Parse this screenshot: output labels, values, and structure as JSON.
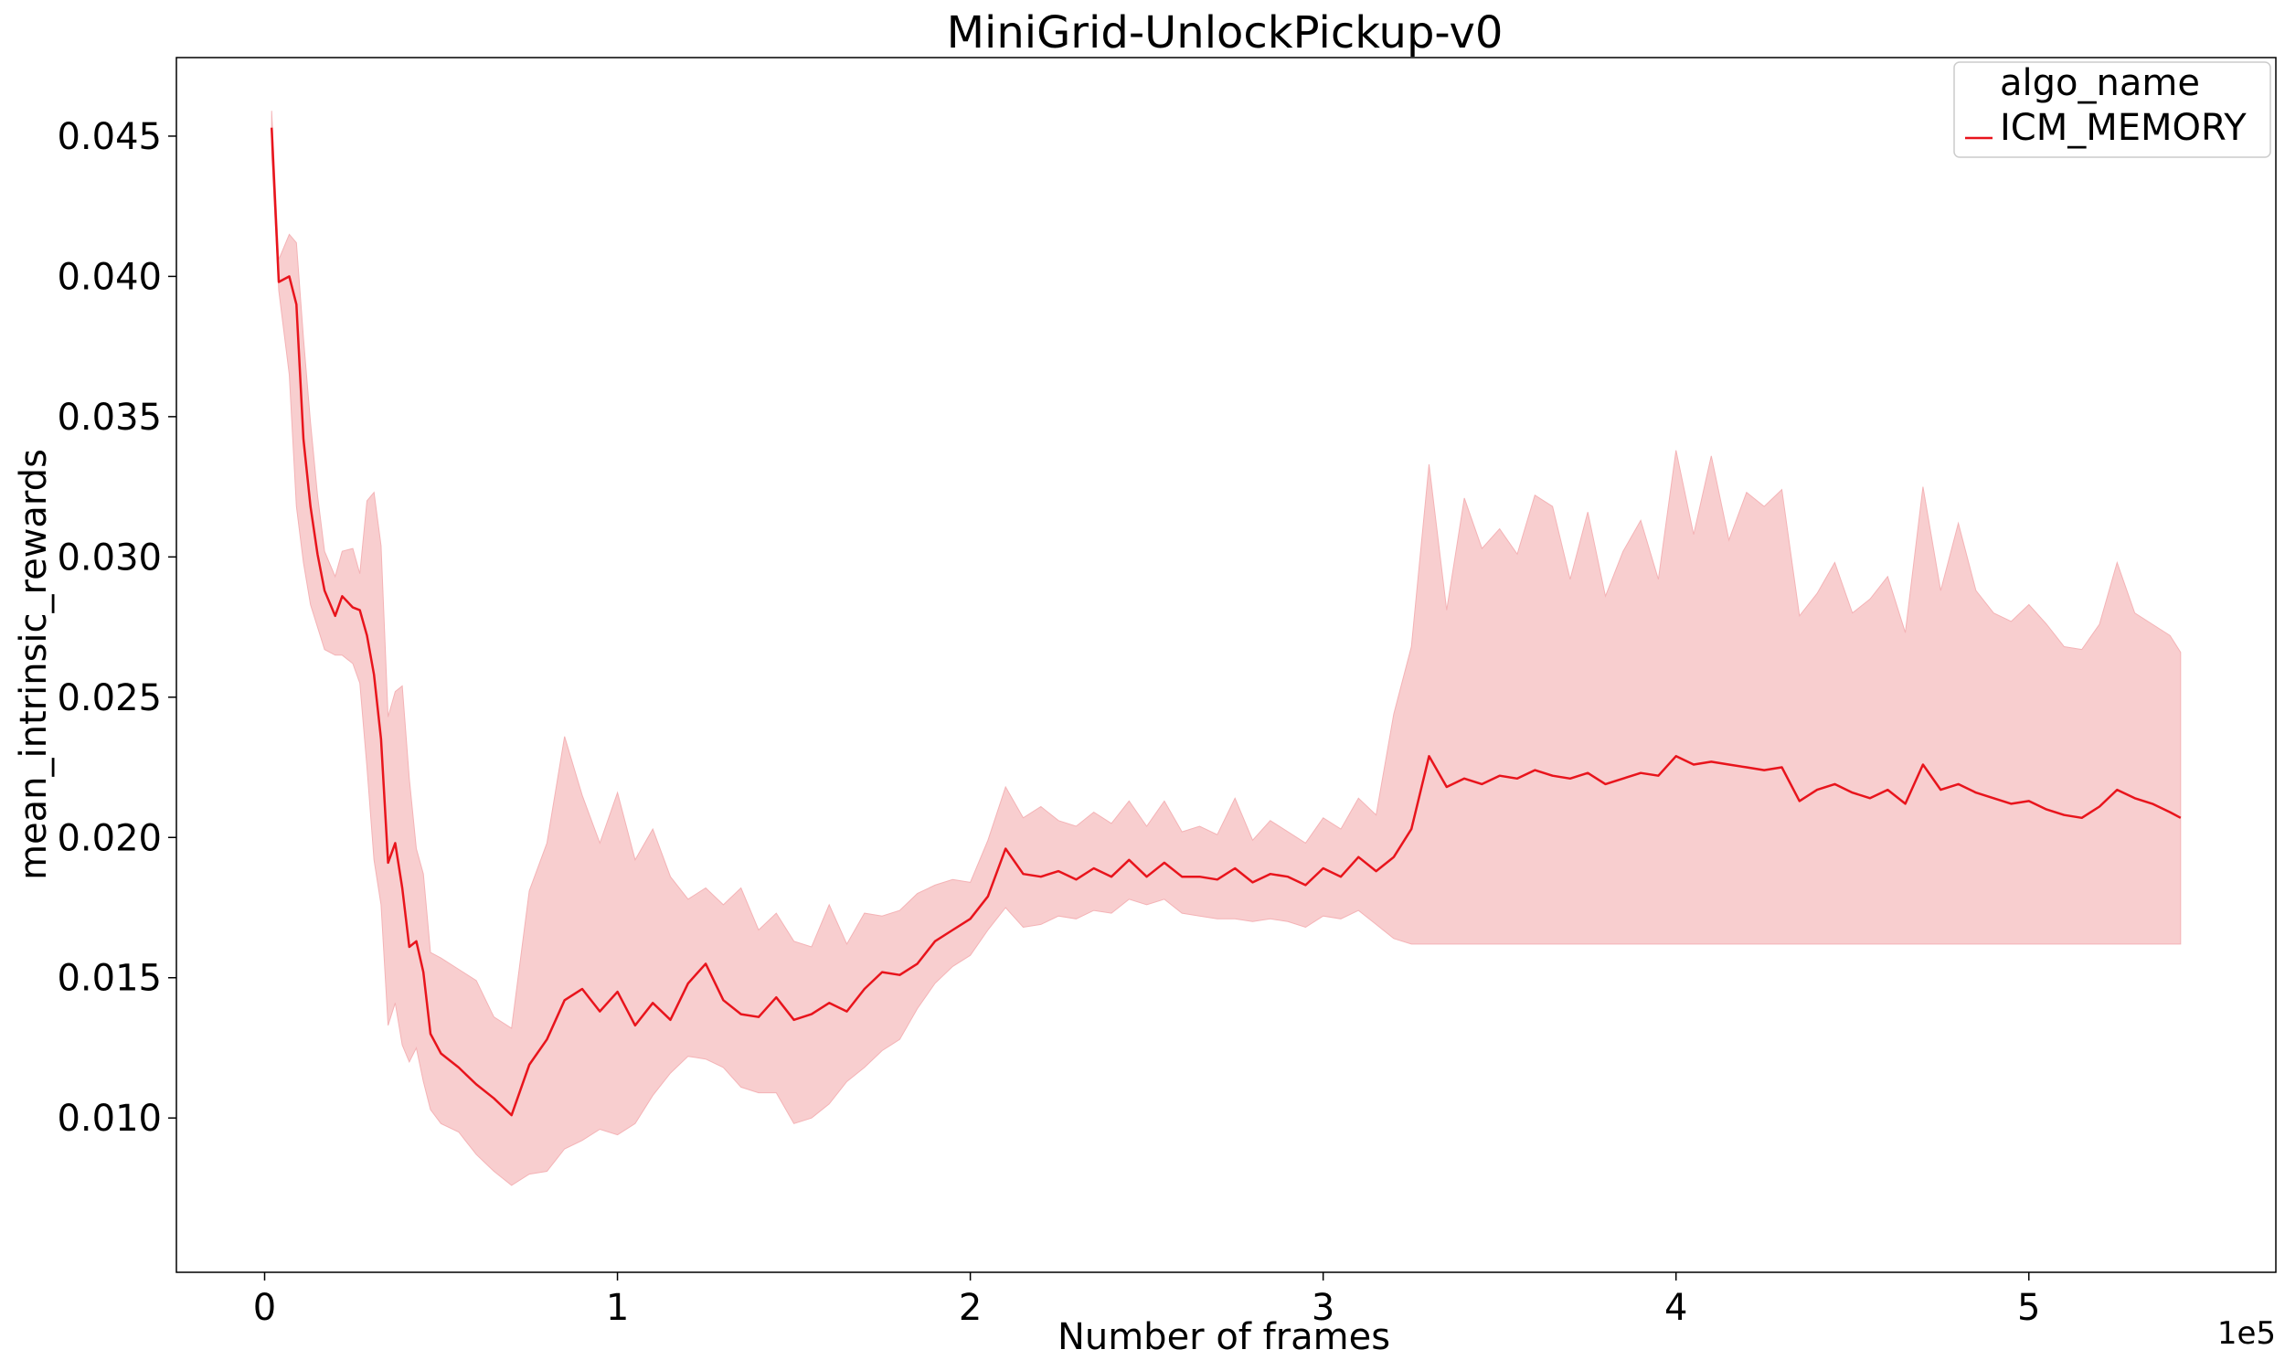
{
  "chart_data": {
    "type": "line",
    "title": "MiniGrid-UnlockPickup-v0",
    "xlabel": "Number of frames",
    "ylabel": "mean_intrinsic_rewards",
    "x_offset_label": "1e5",
    "xlim": [
      -0.25,
      5.7
    ],
    "ylim": [
      0.0045,
      0.0478
    ],
    "x_ticks": [
      0,
      1,
      2,
      3,
      4,
      5
    ],
    "x_tick_labels": [
      "0",
      "1",
      "2",
      "3",
      "4",
      "5"
    ],
    "y_ticks": [
      0.01,
      0.015,
      0.02,
      0.025,
      0.03,
      0.035,
      0.04,
      0.045
    ],
    "y_tick_labels": [
      "0.010",
      "0.015",
      "0.020",
      "0.025",
      "0.030",
      "0.035",
      "0.040",
      "0.045"
    ],
    "grid": false,
    "legend": {
      "title": "algo_name",
      "placement": "top-right"
    },
    "series": [
      {
        "name": "ICM_MEMORY",
        "color": "#e8141c",
        "band_color": "#f4b3b6",
        "x": [
          0.02,
          0.04,
          0.07,
          0.09,
          0.11,
          0.13,
          0.15,
          0.17,
          0.2,
          0.22,
          0.25,
          0.27,
          0.29,
          0.31,
          0.33,
          0.35,
          0.37,
          0.39,
          0.41,
          0.43,
          0.45,
          0.47,
          0.5,
          0.55,
          0.6,
          0.65,
          0.7,
          0.75,
          0.8,
          0.85,
          0.9,
          0.95,
          1.0,
          1.05,
          1.1,
          1.15,
          1.2,
          1.25,
          1.3,
          1.35,
          1.4,
          1.45,
          1.5,
          1.55,
          1.6,
          1.65,
          1.7,
          1.75,
          1.8,
          1.85,
          1.9,
          1.95,
          2.0,
          2.05,
          2.1,
          2.15,
          2.2,
          2.25,
          2.3,
          2.35,
          2.4,
          2.45,
          2.5,
          2.55,
          2.6,
          2.65,
          2.7,
          2.75,
          2.8,
          2.85,
          2.9,
          2.95,
          3.0,
          3.05,
          3.1,
          3.15,
          3.2,
          3.25,
          3.3,
          3.35,
          3.4,
          3.45,
          3.5,
          3.55,
          3.6,
          3.65,
          3.7,
          3.75,
          3.8,
          3.85,
          3.9,
          3.95,
          4.0,
          4.05,
          4.1,
          4.15,
          4.2,
          4.25,
          4.3,
          4.35,
          4.4,
          4.45,
          4.5,
          4.55,
          4.6,
          4.65,
          4.7,
          4.75,
          4.8,
          4.85,
          4.9,
          4.95,
          5.0,
          5.05,
          5.1,
          5.15,
          5.2,
          5.25,
          5.3,
          5.35,
          5.4,
          5.43
        ],
        "y": [
          0.0453,
          0.0398,
          0.04,
          0.039,
          0.0342,
          0.0318,
          0.0301,
          0.0288,
          0.0279,
          0.0286,
          0.0282,
          0.0281,
          0.0272,
          0.0258,
          0.0235,
          0.0191,
          0.0198,
          0.0182,
          0.0161,
          0.0163,
          0.0152,
          0.013,
          0.0123,
          0.0118,
          0.0112,
          0.0107,
          0.0101,
          0.0119,
          0.0128,
          0.0142,
          0.0146,
          0.0138,
          0.0145,
          0.0133,
          0.0141,
          0.0135,
          0.0148,
          0.0155,
          0.0142,
          0.0137,
          0.0136,
          0.0143,
          0.0135,
          0.0137,
          0.0141,
          0.0138,
          0.0146,
          0.0152,
          0.0151,
          0.0155,
          0.0163,
          0.0167,
          0.0171,
          0.0179,
          0.0196,
          0.0187,
          0.0186,
          0.0188,
          0.0185,
          0.0189,
          0.0186,
          0.0192,
          0.0186,
          0.0191,
          0.0186,
          0.0186,
          0.0185,
          0.0189,
          0.0184,
          0.0187,
          0.0186,
          0.0183,
          0.0189,
          0.0186,
          0.0193,
          0.0188,
          0.0193,
          0.0203,
          0.0229,
          0.0218,
          0.0221,
          0.0219,
          0.0222,
          0.0221,
          0.0224,
          0.0222,
          0.0221,
          0.0223,
          0.0219,
          0.0221,
          0.0223,
          0.0222,
          0.0229,
          0.0226,
          0.0227,
          0.0226,
          0.0225,
          0.0224,
          0.0225,
          0.0213,
          0.0217,
          0.0219,
          0.0216,
          0.0214,
          0.0217,
          0.0212,
          0.0226,
          0.0217,
          0.0219,
          0.0216,
          0.0214,
          0.0212,
          0.0213,
          0.021,
          0.0208,
          0.0207,
          0.0211,
          0.0217,
          0.0214,
          0.0212,
          0.0209,
          0.0207
        ],
        "lower": [
          0.0444,
          0.0395,
          0.0365,
          0.0318,
          0.0298,
          0.0283,
          0.0275,
          0.0267,
          0.0265,
          0.0265,
          0.0262,
          0.0255,
          0.0225,
          0.0192,
          0.0176,
          0.0133,
          0.0141,
          0.0126,
          0.012,
          0.0125,
          0.0113,
          0.0103,
          0.0098,
          0.0095,
          0.0087,
          0.0081,
          0.0076,
          0.008,
          0.0081,
          0.0089,
          0.0092,
          0.0096,
          0.0094,
          0.0098,
          0.0108,
          0.0116,
          0.0122,
          0.0121,
          0.0118,
          0.0111,
          0.0109,
          0.0109,
          0.0098,
          0.01,
          0.0105,
          0.0113,
          0.0118,
          0.0124,
          0.0128,
          0.0139,
          0.0148,
          0.0154,
          0.0158,
          0.0167,
          0.0175,
          0.0168,
          0.0169,
          0.0172,
          0.0171,
          0.0174,
          0.0173,
          0.0178,
          0.0176,
          0.0178,
          0.0173,
          0.0172,
          0.0171,
          0.0171,
          0.017,
          0.0171,
          0.017,
          0.0168,
          0.0172,
          0.0171,
          0.0174,
          0.0169,
          0.0164,
          0.0162,
          0.0162,
          0.0162,
          0.0162,
          0.0162,
          0.0162,
          0.0162,
          0.0162,
          0.0162,
          0.0162,
          0.0162,
          0.0162,
          0.0162,
          0.0162,
          0.0162,
          0.0162,
          0.0162,
          0.0162,
          0.0162,
          0.0162,
          0.0162,
          0.0162,
          0.0162,
          0.0162,
          0.0162,
          0.0162,
          0.0162,
          0.0162,
          0.0162,
          0.0162,
          0.0162,
          0.0162,
          0.0162,
          0.0162,
          0.0162,
          0.0162,
          0.0162,
          0.0162,
          0.0162,
          0.0162,
          0.0162,
          0.0162,
          0.0162,
          0.0162,
          0.0162
        ],
        "upper": [
          0.0459,
          0.0406,
          0.0415,
          0.0412,
          0.0378,
          0.0348,
          0.0322,
          0.0302,
          0.0293,
          0.0302,
          0.0303,
          0.0294,
          0.032,
          0.0323,
          0.0304,
          0.0243,
          0.0252,
          0.0254,
          0.0221,
          0.0196,
          0.0187,
          0.0159,
          0.0157,
          0.0153,
          0.0149,
          0.0136,
          0.0132,
          0.0181,
          0.0198,
          0.0236,
          0.0215,
          0.0198,
          0.0216,
          0.0192,
          0.0203,
          0.0186,
          0.0178,
          0.0182,
          0.0176,
          0.0182,
          0.0167,
          0.0173,
          0.0163,
          0.0161,
          0.0176,
          0.0162,
          0.0173,
          0.0172,
          0.0174,
          0.018,
          0.0183,
          0.0185,
          0.0184,
          0.0199,
          0.0218,
          0.0207,
          0.0211,
          0.0206,
          0.0204,
          0.0209,
          0.0205,
          0.0213,
          0.0204,
          0.0213,
          0.0202,
          0.0204,
          0.0201,
          0.0214,
          0.0199,
          0.0206,
          0.0202,
          0.0198,
          0.0207,
          0.0203,
          0.0214,
          0.0208,
          0.0244,
          0.0268,
          0.0333,
          0.0281,
          0.0321,
          0.0303,
          0.031,
          0.0301,
          0.0322,
          0.0318,
          0.0292,
          0.0316,
          0.0286,
          0.0302,
          0.0313,
          0.0292,
          0.0338,
          0.0308,
          0.0336,
          0.0306,
          0.0323,
          0.0318,
          0.0324,
          0.0279,
          0.0287,
          0.0298,
          0.028,
          0.0285,
          0.0293,
          0.0273,
          0.0325,
          0.0288,
          0.0312,
          0.0288,
          0.028,
          0.0277,
          0.0283,
          0.0276,
          0.0268,
          0.0267,
          0.0276,
          0.0298,
          0.028,
          0.0276,
          0.0272,
          0.0266
        ]
      }
    ]
  }
}
